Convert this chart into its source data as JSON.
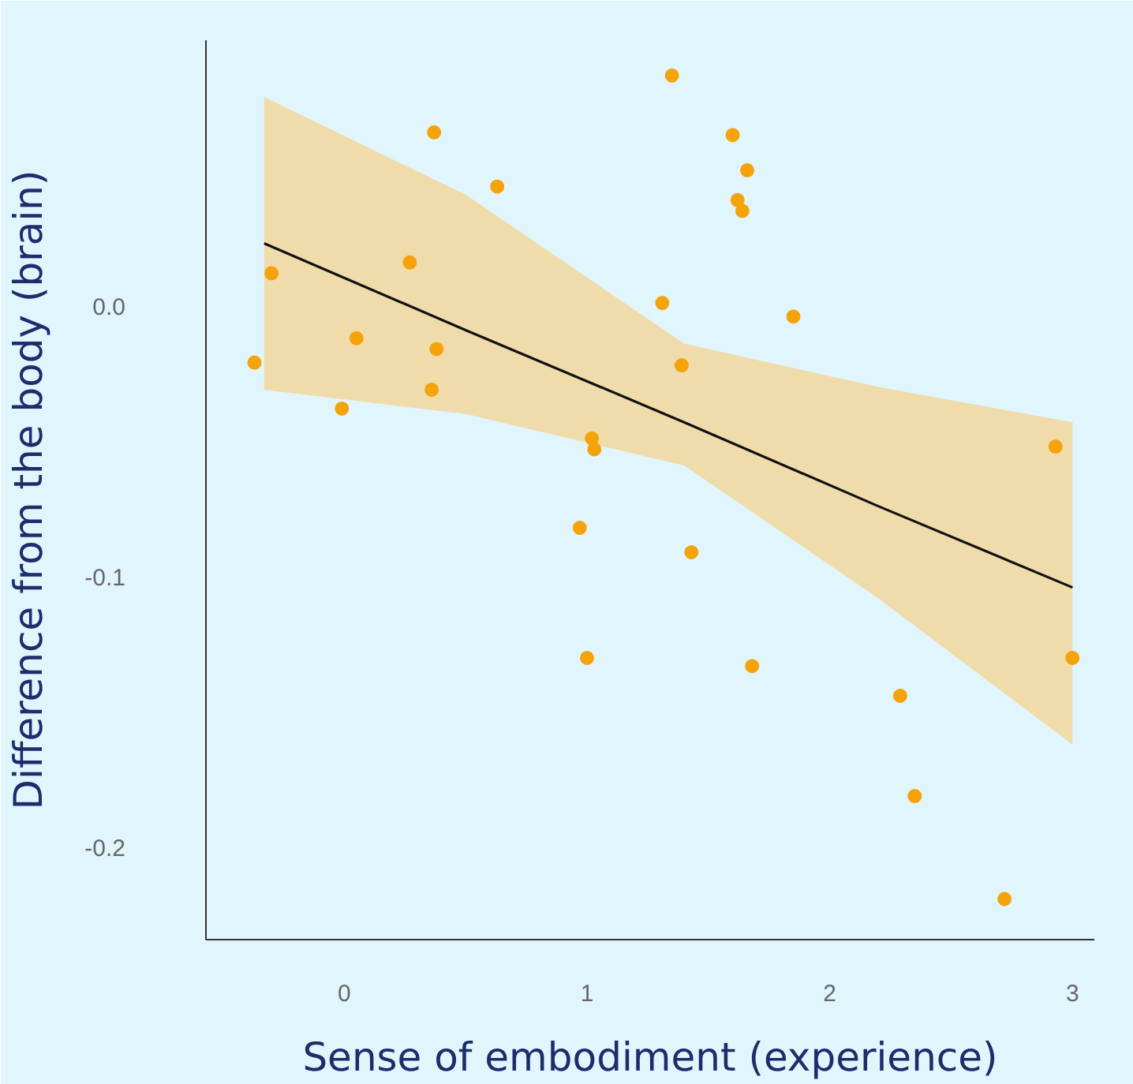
{
  "chart_data": {
    "type": "scatter",
    "xlabel": "Sense of embodiment (experience)",
    "ylabel": "Difference from the body (brain)",
    "xlim": [
      -0.57,
      3.09
    ],
    "ylim": [
      -0.234,
      0.098
    ],
    "xticks": [
      0,
      1,
      2,
      3
    ],
    "yticks": [
      {
        "value": 0,
        "label": "0.0"
      },
      -0.1,
      -0.2
    ],
    "grid": false,
    "series": [
      {
        "marker": "circle",
        "color": "#f5a30a",
        "x": [
          -0.37,
          -0.3,
          -0.01,
          0.05,
          0.27,
          0.36,
          0.37,
          0.38,
          0.63,
          0.97,
          1.0,
          1.02,
          1.03,
          1.31,
          1.35,
          1.39,
          1.43,
          1.6,
          1.62,
          1.64,
          1.66,
          1.68,
          1.85,
          2.29,
          2.35,
          2.72,
          2.93,
          3.0
        ],
        "values": [
          -0.021,
          0.012,
          -0.038,
          -0.012,
          0.016,
          -0.031,
          0.064,
          -0.016,
          0.044,
          -0.082,
          -0.13,
          -0.049,
          -0.053,
          0.001,
          0.085,
          -0.022,
          -0.091,
          0.063,
          0.039,
          0.035,
          0.05,
          -0.133,
          -0.004,
          -0.144,
          -0.181,
          -0.219,
          -0.052,
          -0.13
        ]
      },
      {
        "type": "line",
        "marker": "none",
        "color": "#111111",
        "x": [
          -0.33,
          0.5,
          1.4,
          2.2,
          3.0
        ],
        "values": [
          0.023,
          -0.009,
          -0.043,
          -0.074,
          -0.104
        ],
        "lower": [
          -0.031,
          -0.04,
          -0.059,
          -0.108,
          -0.162
        ],
        "upper": [
          0.077,
          0.041,
          -0.014,
          -0.03,
          -0.043
        ]
      }
    ]
  }
}
